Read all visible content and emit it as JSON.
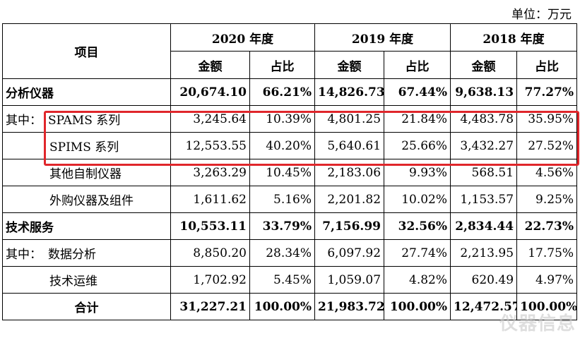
{
  "unit_label": "单位：万元",
  "header": {
    "item": "项目",
    "years": [
      "2020 年度",
      "2019 年度",
      "2018 年度"
    ],
    "amount": "金额",
    "ratio": "占比"
  },
  "rows": [
    {
      "prefix": "",
      "label": "分析仪器",
      "v": [
        "20,674.10",
        "66.21%",
        "14,826.73",
        "67.44%",
        "9,638.13",
        "77.27%"
      ]
    },
    {
      "prefix": "其中：",
      "label": "SPAMS 系列",
      "v": [
        "3,245.64",
        "10.39%",
        "4,801.25",
        "21.84%",
        "4,483.78",
        "35.95%"
      ]
    },
    {
      "prefix": "",
      "label": "SPIMS 系列",
      "v": [
        "12,553.55",
        "40.20%",
        "5,640.61",
        "25.66%",
        "3,432.27",
        "27.52%"
      ]
    },
    {
      "prefix": "",
      "label": "其他自制仪器",
      "v": [
        "3,263.29",
        "10.45%",
        "2,183.06",
        "9.93%",
        "568.51",
        "4.56%"
      ]
    },
    {
      "prefix": "",
      "label": "外购仪器及组件",
      "v": [
        "1,611.62",
        "5.16%",
        "2,201.82",
        "10.02%",
        "1,153.57",
        "9.25%"
      ]
    },
    {
      "prefix": "",
      "label": "技术服务",
      "v": [
        "10,553.11",
        "33.79%",
        "7,156.99",
        "32.56%",
        "2,834.44",
        "22.73%"
      ]
    },
    {
      "prefix": "其中：",
      "label": "数据分析",
      "v": [
        "8,850.20",
        "28.34%",
        "6,097.92",
        "27.74%",
        "2,213.95",
        "17.75%"
      ]
    },
    {
      "prefix": "",
      "label": "技术运维",
      "v": [
        "1,702.92",
        "5.45%",
        "1,059.07",
        "4.82%",
        "620.49",
        "4.97%"
      ]
    },
    {
      "prefix": "",
      "label": "合计",
      "v": [
        "31,227.21",
        "100.00%",
        "21,983.72",
        "100.00%",
        "12,472.57",
        "100.00%"
      ]
    }
  ],
  "watermark": "仪器信息"
}
